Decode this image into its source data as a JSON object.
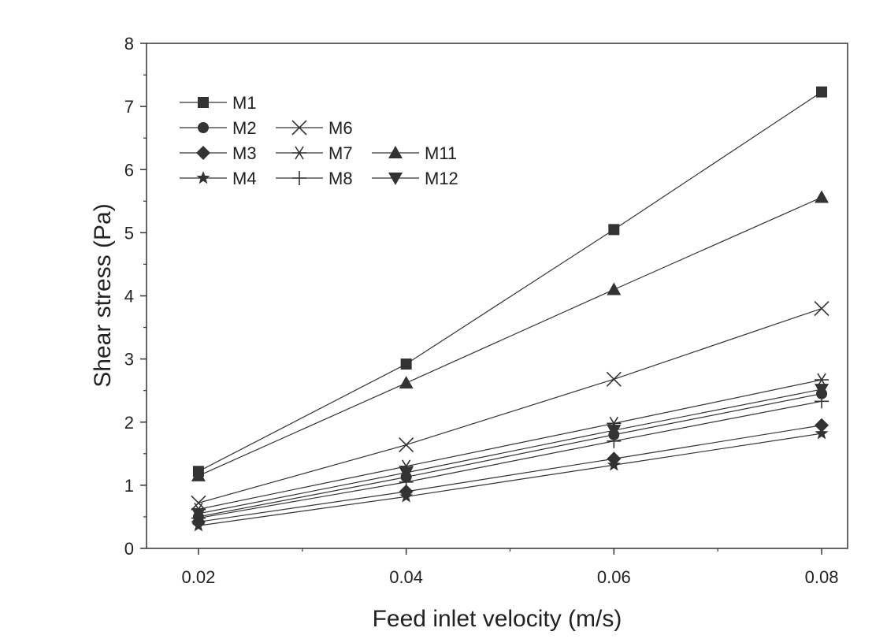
{
  "chart_data": {
    "type": "line",
    "title": "",
    "xlabel": "Feed inlet velocity (m/s)",
    "ylabel": "Shear stress (Pa)",
    "x": [
      0.02,
      0.04,
      0.06,
      0.08
    ],
    "x_tick_labels": [
      "0.02",
      "0.04",
      "0.06",
      "0.08"
    ],
    "xlim": [
      0.015,
      0.0825
    ],
    "ylim": [
      0,
      8
    ],
    "y_ticks": [
      0,
      1,
      2,
      3,
      4,
      5,
      6,
      7,
      8
    ],
    "y_tick_labels": [
      "0",
      "1",
      "2",
      "3",
      "4",
      "5",
      "6",
      "7",
      "8"
    ],
    "grid": false,
    "legend_position": "top-left",
    "line_color": "#333333",
    "series": [
      {
        "name": "M1",
        "marker": "square",
        "values": [
          1.22,
          2.92,
          5.05,
          7.23
        ]
      },
      {
        "name": "M2",
        "marker": "circle",
        "values": [
          0.5,
          1.13,
          1.8,
          2.45
        ]
      },
      {
        "name": "M3",
        "marker": "diamond",
        "values": [
          0.42,
          0.9,
          1.42,
          1.95
        ]
      },
      {
        "name": "M4",
        "marker": "star",
        "values": [
          0.36,
          0.82,
          1.32,
          1.82
        ]
      },
      {
        "name": "M6",
        "marker": "x",
        "values": [
          0.72,
          1.64,
          2.68,
          3.8
        ]
      },
      {
        "name": "M7",
        "marker": "asterisk",
        "values": [
          0.62,
          1.3,
          1.98,
          2.67
        ]
      },
      {
        "name": "M8",
        "marker": "plus",
        "values": [
          0.48,
          1.05,
          1.7,
          2.33
        ]
      },
      {
        "name": "M11",
        "marker": "triangle-up",
        "values": [
          1.15,
          2.62,
          4.1,
          5.56
        ]
      },
      {
        "name": "M12",
        "marker": "triangle-down",
        "values": [
          0.55,
          1.2,
          1.87,
          2.52
        ]
      }
    ],
    "legend_layout": [
      [
        "M1"
      ],
      [
        "M2",
        "M6"
      ],
      [
        "M3",
        "M7",
        "M11"
      ],
      [
        "M4",
        "M8",
        "M12"
      ]
    ]
  }
}
